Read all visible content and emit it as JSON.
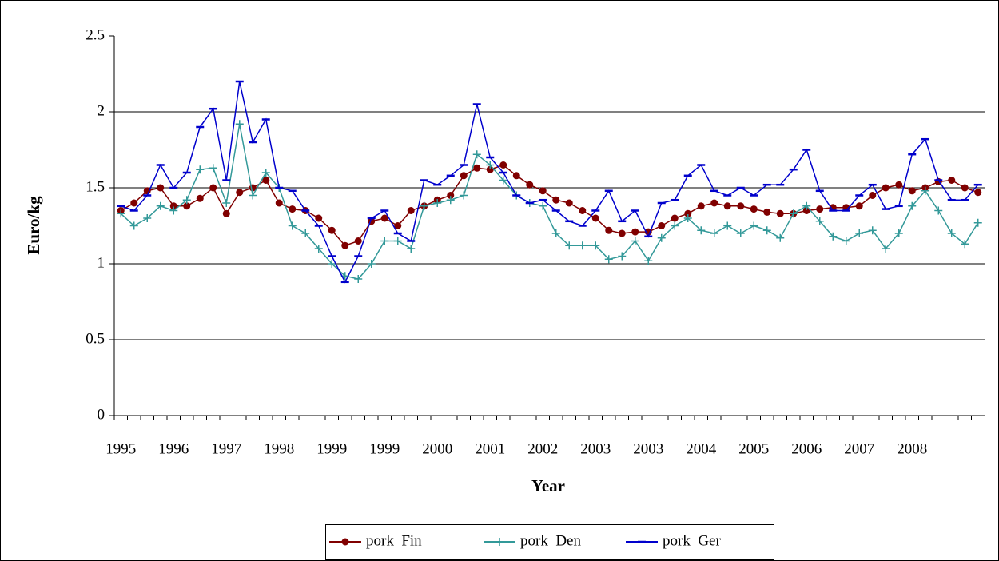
{
  "chart_data": {
    "type": "line",
    "x_label": "Year",
    "y_label": "Euro/kg",
    "x": [
      "1995",
      null,
      null,
      null,
      "1996",
      null,
      null,
      null,
      "1997",
      null,
      null,
      null,
      "1998",
      null,
      null,
      null,
      "1999",
      null,
      null,
      null,
      "1999",
      null,
      null,
      null,
      "2000",
      null,
      null,
      null,
      "2001",
      null,
      null,
      null,
      "2002",
      null,
      null,
      null,
      "2003",
      null,
      null,
      null,
      "2003",
      null,
      null,
      null,
      "2004",
      null,
      null,
      null,
      "2005",
      null,
      null,
      null,
      "2006",
      null,
      null,
      null,
      "2007",
      null,
      null,
      null,
      "2008",
      null,
      null,
      null,
      null,
      null
    ],
    "ylim": [
      0,
      2.5
    ],
    "yticks": [
      0,
      0.5,
      1,
      1.5,
      2,
      2.5
    ],
    "grid": true,
    "legend": "bottom",
    "series": [
      {
        "name": "pork_Fin",
        "color": "#800000",
        "marker": "circle",
        "values": [
          1.35,
          1.4,
          1.48,
          1.5,
          1.38,
          1.38,
          1.43,
          1.5,
          1.33,
          1.47,
          1.5,
          1.55,
          1.4,
          1.36,
          1.35,
          1.3,
          1.22,
          1.12,
          1.15,
          1.28,
          1.3,
          1.25,
          1.35,
          1.38,
          1.42,
          1.45,
          1.58,
          1.63,
          1.62,
          1.65,
          1.58,
          1.52,
          1.48,
          1.42,
          1.4,
          1.35,
          1.3,
          1.22,
          1.2,
          1.21,
          1.21,
          1.25,
          1.3,
          1.33,
          1.38,
          1.4,
          1.38,
          1.38,
          1.36,
          1.34,
          1.33,
          1.33,
          1.35,
          1.36,
          1.37,
          1.37,
          1.38,
          1.45,
          1.5,
          1.52,
          1.48,
          1.5,
          1.54,
          1.55,
          1.5,
          1.47
        ]
      },
      {
        "name": "pork_Den",
        "color": "#339999",
        "marker": "plus",
        "values": [
          1.33,
          1.25,
          1.3,
          1.38,
          1.35,
          1.42,
          1.62,
          1.63,
          1.4,
          1.92,
          1.45,
          1.6,
          1.5,
          1.25,
          1.2,
          1.1,
          1.0,
          0.92,
          0.9,
          1.0,
          1.15,
          1.15,
          1.1,
          1.38,
          1.4,
          1.42,
          1.45,
          1.72,
          1.65,
          1.55,
          1.45,
          1.4,
          1.38,
          1.2,
          1.12,
          1.12,
          1.12,
          1.03,
          1.05,
          1.15,
          1.02,
          1.17,
          1.25,
          1.3,
          1.22,
          1.2,
          1.25,
          1.2,
          1.25,
          1.22,
          1.17,
          1.33,
          1.38,
          1.28,
          1.18,
          1.15,
          1.2,
          1.22,
          1.1,
          1.2,
          1.38,
          1.48,
          1.35,
          1.2,
          1.13,
          1.27
        ]
      },
      {
        "name": "pork_Ger",
        "color": "#0000cc",
        "marker": "dash",
        "values": [
          1.38,
          1.35,
          1.45,
          1.65,
          1.5,
          1.6,
          1.9,
          2.02,
          1.55,
          2.2,
          1.8,
          1.95,
          1.5,
          1.48,
          1.35,
          1.25,
          1.05,
          0.88,
          1.05,
          1.3,
          1.35,
          1.2,
          1.15,
          1.55,
          1.52,
          1.58,
          1.65,
          2.05,
          1.7,
          1.6,
          1.45,
          1.4,
          1.42,
          1.35,
          1.28,
          1.25,
          1.35,
          1.48,
          1.28,
          1.35,
          1.18,
          1.4,
          1.42,
          1.58,
          1.65,
          1.48,
          1.45,
          1.5,
          1.45,
          1.52,
          1.52,
          1.62,
          1.75,
          1.48,
          1.35,
          1.35,
          1.45,
          1.52,
          1.36,
          1.38,
          1.72,
          1.82,
          1.55,
          1.42,
          1.42,
          1.52
        ]
      }
    ]
  }
}
